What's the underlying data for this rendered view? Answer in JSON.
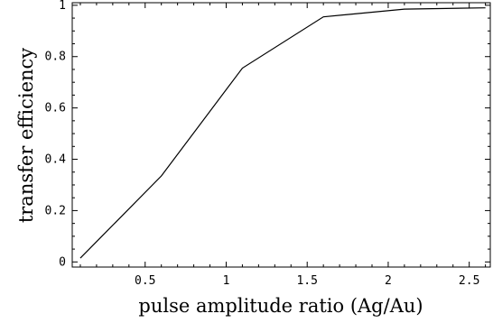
{
  "chart_data": {
    "type": "line",
    "xlabel": "pulse amplitude ratio (Ag/Au)",
    "ylabel": "transfer efficiency",
    "xlim": [
      0.05,
      2.63
    ],
    "ylim": [
      -0.02,
      1.01
    ],
    "grid": false,
    "x_ticks": {
      "major": [
        0.5,
        1.0,
        1.5,
        2.0,
        2.5
      ],
      "labels": [
        "0.5",
        "1",
        "1.5",
        "2",
        "2.5"
      ]
    },
    "y_ticks": {
      "major": [
        0,
        0.2,
        0.4,
        0.6,
        0.8,
        1.0
      ],
      "labels": [
        "0",
        "0.2",
        "0.4",
        "0.6",
        "0.8",
        "1"
      ]
    },
    "series": [
      {
        "x": [
          0.1,
          0.6,
          1.1,
          1.6,
          2.1,
          2.6
        ],
        "y": [
          0.015,
          0.335,
          0.755,
          0.955,
          0.985,
          0.99
        ]
      }
    ]
  }
}
